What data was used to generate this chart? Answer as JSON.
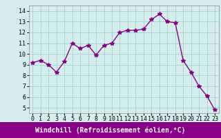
{
  "x": [
    0,
    1,
    2,
    3,
    4,
    5,
    6,
    7,
    8,
    9,
    10,
    11,
    12,
    13,
    14,
    15,
    16,
    17,
    18,
    19,
    20,
    21,
    22,
    23
  ],
  "y": [
    9.2,
    9.4,
    9.0,
    8.3,
    9.3,
    11.0,
    10.5,
    10.8,
    9.9,
    10.8,
    11.0,
    12.0,
    12.2,
    12.2,
    12.3,
    13.2,
    13.7,
    13.0,
    12.9,
    9.4,
    8.3,
    7.0,
    6.1,
    4.8
  ],
  "line_color": "#880088",
  "marker": "*",
  "marker_size": 4,
  "bg_color": "#d4eeee",
  "grid_color": "#aad4d4",
  "xlabel": "Windchill (Refroidissement éolien,°C)",
  "xlim": [
    -0.5,
    23.5
  ],
  "ylim": [
    4.5,
    14.5
  ],
  "yticks": [
    5,
    6,
    7,
    8,
    9,
    10,
    11,
    12,
    13,
    14
  ],
  "xticks": [
    0,
    1,
    2,
    3,
    4,
    5,
    6,
    7,
    8,
    9,
    10,
    11,
    12,
    13,
    14,
    15,
    16,
    17,
    18,
    19,
    20,
    21,
    22,
    23
  ],
  "tick_label_fontsize": 6.0,
  "xlabel_fontsize": 7.0,
  "line_width": 1.0,
  "bottom_bar_color": "#880088"
}
